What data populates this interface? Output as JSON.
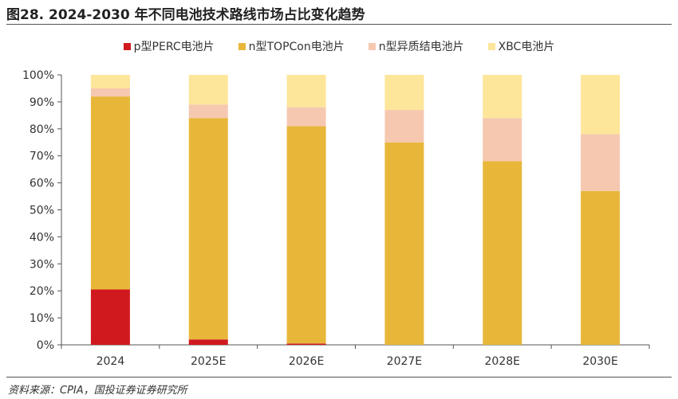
{
  "figure": {
    "title": "图28. 2024-2030 年不同电池技术路线市场占比变化趋势",
    "source": "资料来源：CPIA，国投证券证券研究所"
  },
  "chart_data": {
    "type": "bar",
    "stacked": true,
    "title": "",
    "xlabel": "",
    "ylabel": "",
    "ylim": [
      0,
      100
    ],
    "yticks": [
      "0%",
      "10%",
      "20%",
      "30%",
      "40%",
      "50%",
      "60%",
      "70%",
      "80%",
      "90%",
      "100%"
    ],
    "categories": [
      "2024",
      "2025E",
      "2026E",
      "2027E",
      "2028E",
      "2030E"
    ],
    "legend_position": "top",
    "grid": false,
    "series": [
      {
        "name": "p型PERC电池片",
        "color": "#d0191f",
        "values": [
          20.5,
          2,
          0.5,
          0,
          0,
          0
        ]
      },
      {
        "name": "n型TOPCon电池片",
        "color": "#e8b73a",
        "values": [
          71.5,
          82,
          80.5,
          75,
          68,
          57
        ]
      },
      {
        "name": "n型异质结电池片",
        "color": "#f6c8b0",
        "values": [
          3,
          5,
          7,
          12,
          16,
          21
        ]
      },
      {
        "name": "XBC电池片",
        "color": "#fde59a",
        "values": [
          5,
          11,
          12,
          13,
          16,
          22
        ]
      }
    ]
  }
}
